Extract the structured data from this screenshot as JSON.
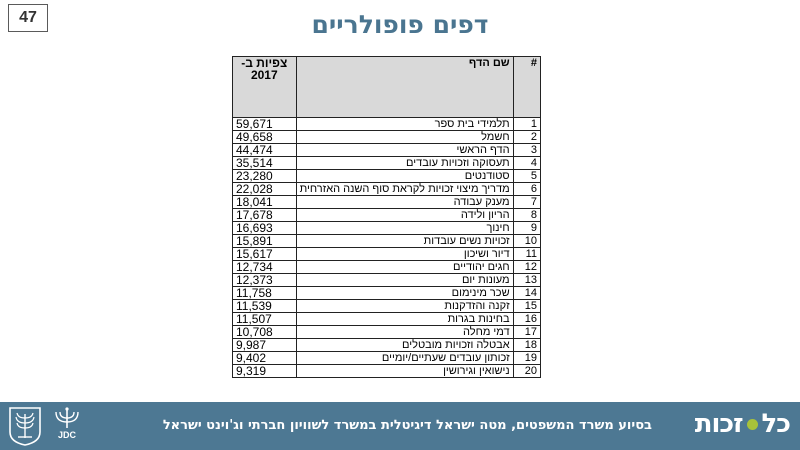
{
  "slide_number": "47",
  "title": "דפים פופולריים",
  "table": {
    "headers": {
      "num": "#",
      "name": "שם הדף",
      "views_line1": "צפיות ב-",
      "views_line2": "2017"
    },
    "rows": [
      {
        "num": "1",
        "name": "תלמידי בית ספר",
        "views": "59,671"
      },
      {
        "num": "2",
        "name": "חשמל",
        "views": "49,658"
      },
      {
        "num": "3",
        "name": "הדף הראשי",
        "views": "44,474"
      },
      {
        "num": "4",
        "name": "תעסוקה וזכויות עובדים",
        "views": "35,514"
      },
      {
        "num": "5",
        "name": "סטודנטים",
        "views": "23,280"
      },
      {
        "num": "6",
        "name": "מדריך מיצוי זכויות לקראת סוף השנה האזרחית",
        "views": "22,028"
      },
      {
        "num": "7",
        "name": "מענק עבודה",
        "views": "18,041"
      },
      {
        "num": "8",
        "name": "הריון ולידה",
        "views": "17,678"
      },
      {
        "num": "9",
        "name": "חינוך",
        "views": "16,693"
      },
      {
        "num": "10",
        "name": "זכויות נשים עובדות",
        "views": "15,891"
      },
      {
        "num": "11",
        "name": "דיור ושיכון",
        "views": "15,617"
      },
      {
        "num": "12",
        "name": "חגים יהודיים",
        "views": "12,734"
      },
      {
        "num": "13",
        "name": "מעונות יום",
        "views": "12,373"
      },
      {
        "num": "14",
        "name": "שכר מינימום",
        "views": "11,758"
      },
      {
        "num": "15",
        "name": "זקנה והזדקנות",
        "views": "11,539"
      },
      {
        "num": "16",
        "name": "בחינות בגרות",
        "views": "11,507"
      },
      {
        "num": "17",
        "name": "דמי מחלה",
        "views": "10,708"
      },
      {
        "num": "18",
        "name": "אבטלה וזכויות מובטלים",
        "views": "9,987"
      },
      {
        "num": "19",
        "name": "זכותון עובדים שעתיים/יומיים",
        "views": "9,402"
      },
      {
        "num": "20",
        "name": "נישואין וגירושין",
        "views": "9,319"
      }
    ]
  },
  "footer": {
    "text": "בסיוע משרד המשפטים, מטה ישראל דיגיטלית במשרד לשוויון חברתי וג'וינט ישראל",
    "logo_part1": "כל",
    "logo_part2": "זכות",
    "jdc_label": "JDC",
    "background_color": "#4d7893",
    "logo_dot_color": "#a8c23a"
  },
  "colors": {
    "title": "#4a7590",
    "header_bg": "#d9d9d9"
  },
  "icons": [
    "state-emblem-icon",
    "jdc-logo-icon"
  ]
}
